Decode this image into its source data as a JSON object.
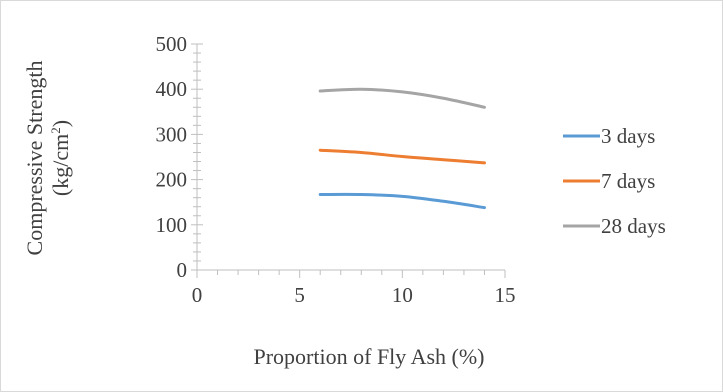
{
  "chart_data": {
    "type": "line",
    "title": "",
    "xlabel": "Proportion of Fly Ash (%)",
    "ylabel_line1": "Compressive Strength",
    "ylabel_line2_base": "(kg/cm",
    "ylabel_line2_sup": "2",
    "ylabel_line2_end": ")",
    "xlim": [
      0,
      15
    ],
    "ylim": [
      0,
      500
    ],
    "x_ticks": [
      0,
      5,
      10,
      15
    ],
    "x_tick_labels": [
      "0",
      "5",
      "10",
      "15"
    ],
    "y_ticks": [
      0,
      100,
      200,
      300,
      400,
      500
    ],
    "y_tick_labels": [
      "0",
      "100",
      "200",
      "300",
      "400",
      "500"
    ],
    "grid": false,
    "legend_position": "right",
    "x": [
      6,
      8,
      10,
      12,
      14
    ],
    "series": [
      {
        "name": "3 days",
        "color": "#5b9bd5",
        "values": [
          167,
          167,
          163,
          152,
          138
        ]
      },
      {
        "name": "7 days",
        "color": "#ed7d31",
        "values": [
          265,
          260,
          251,
          244,
          237
        ]
      },
      {
        "name": "28 days",
        "color": "#a5a5a5",
        "values": [
          396,
          400,
          394,
          380,
          360
        ]
      }
    ]
  }
}
